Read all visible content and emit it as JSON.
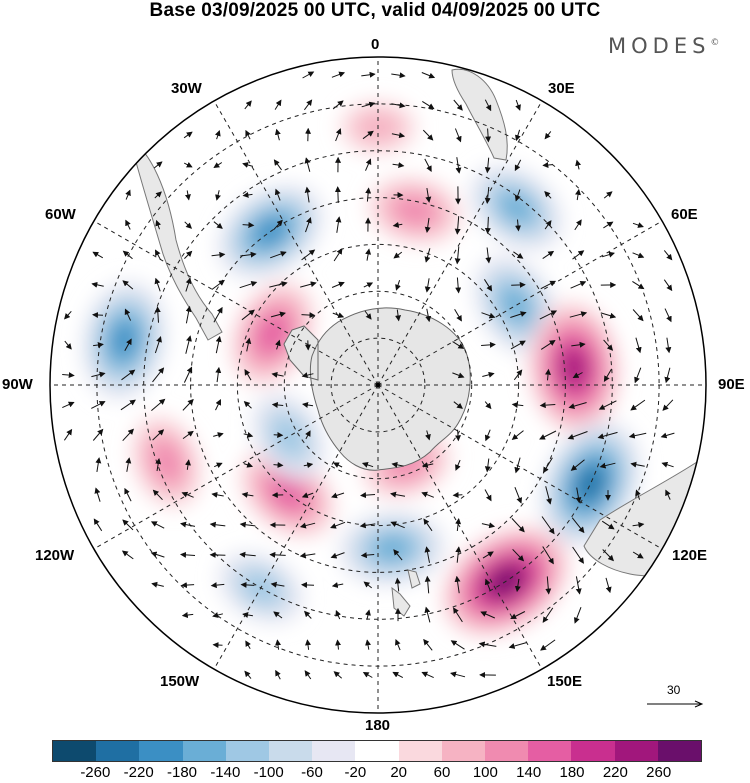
{
  "title": "Base 03/09/2025 00 UTC, valid 04/09/2025 00 UTC",
  "brand": "MODES",
  "brand_mark": "©",
  "longitude_labels": {
    "lon_0": "0",
    "lon_30e": "30E",
    "lon_60e": "60E",
    "lon_90e": "90E",
    "lon_120e": "120E",
    "lon_150e": "150E",
    "lon_180": "180",
    "lon_150w": "150W",
    "lon_120w": "120W",
    "lon_90w": "90W",
    "lon_60w": "60W",
    "lon_30w": "30W"
  },
  "reference_vector": {
    "label": "30"
  },
  "colorbar": {
    "colors": [
      "#0d4a6e",
      "#1f6fa3",
      "#3b8fc4",
      "#6aaed6",
      "#9fc8e4",
      "#c9dbeb",
      "#e7e7f3",
      "#ffffff",
      "#fad9de",
      "#f6b3c3",
      "#f08bb0",
      "#e55ea3",
      "#c92f8f",
      "#a1177c",
      "#6a0f6b"
    ],
    "tick_labels": [
      "-260",
      "-220",
      "-180",
      "-140",
      "-100",
      "-60",
      "-20",
      "20",
      "60",
      "100",
      "140",
      "180",
      "220",
      "260"
    ]
  },
  "map_data": {
    "projection": "south-polar-stereographic",
    "field": "geopotential anomaly (shaded) with wind vectors",
    "anomaly_centers": [
      {
        "lon": 12,
        "lat": -52,
        "value": 120
      },
      {
        "lon": 38,
        "lat": -42,
        "value": -150
      },
      {
        "lon": -35,
        "lat": -50,
        "value": -190
      },
      {
        "lon": 60,
        "lat": -56,
        "value": -160
      },
      {
        "lon": -80,
        "lat": -35,
        "value": -200
      },
      {
        "lon": -64,
        "lat": -65,
        "value": 170
      },
      {
        "lon": 85,
        "lat": -48,
        "value": 240
      },
      {
        "lon": 115,
        "lat": -40,
        "value": -240
      },
      {
        "lon": 147,
        "lat": -40,
        "value": 260
      },
      {
        "lon": -110,
        "lat": -42,
        "value": 120
      },
      {
        "lon": -140,
        "lat": -60,
        "value": 160
      },
      {
        "lon": -120,
        "lat": -68,
        "value": -120
      },
      {
        "lon": 175,
        "lat": -55,
        "value": -160
      },
      {
        "lon": 160,
        "lat": -72,
        "value": 110
      },
      {
        "lon": -150,
        "lat": -40,
        "value": -110
      },
      {
        "lon": 0,
        "lat": -35,
        "value": 60
      }
    ]
  }
}
